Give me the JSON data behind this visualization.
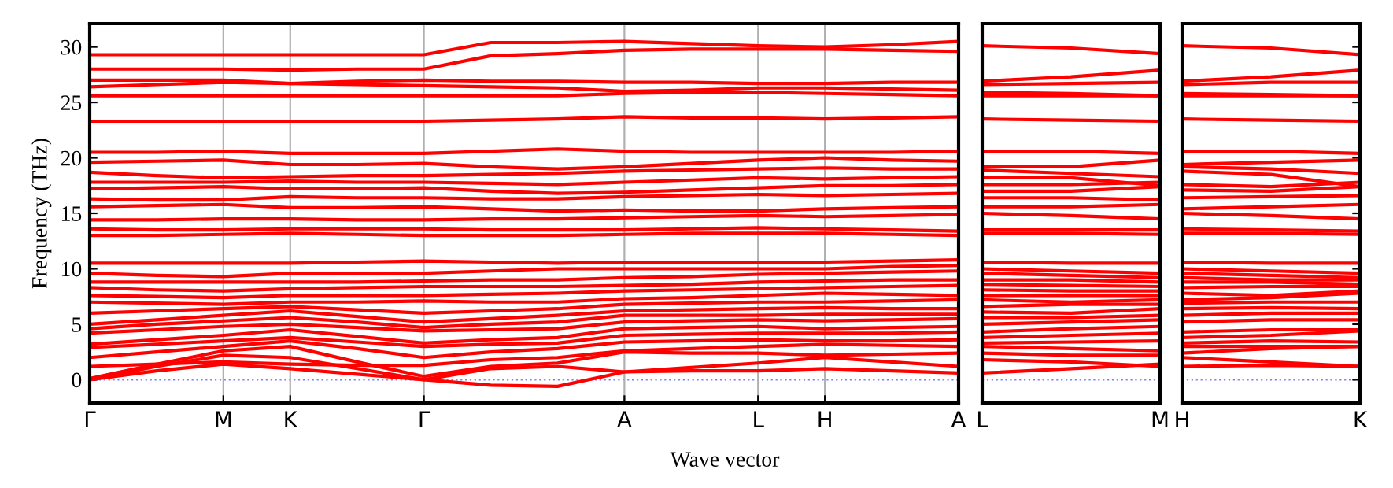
{
  "chart_data": [
    {
      "type": "line",
      "xlabel": "Wave vector",
      "ylabel": "Frequency (THz)",
      "categories": [
        "Γ",
        null,
        "M",
        "K",
        null,
        "Γ",
        null,
        null,
        "A",
        null,
        "L",
        "H",
        null,
        "A"
      ],
      "ylim": [
        -2.1,
        32.1
      ],
      "yticks": [
        0,
        5,
        10,
        15,
        20,
        25,
        30
      ],
      "grid": "x",
      "ref_lines": [
        {
          "axis": "y",
          "value": 0,
          "color": "#8080ff",
          "line_style": "dotted"
        }
      ],
      "series": [
        {
          "color": "#ff0000",
          "values": [
            0,
            0.8,
            1.4,
            1.0,
            0.5,
            0,
            -0.5,
            -0.6,
            0.7,
            0.8,
            0.8,
            1.0,
            0.8,
            0.6
          ]
        },
        {
          "color": "#ff0000",
          "values": [
            0,
            1.2,
            2.2,
            2.0,
            1.0,
            0,
            1.0,
            1.2,
            0.7,
            1.1,
            1.5,
            2.0,
            1.6,
            1.2
          ]
        },
        {
          "color": "#ff0000",
          "values": [
            0.1,
            1.4,
            2.6,
            3.0,
            1.6,
            0.3,
            1.2,
            1.5,
            2.5,
            2.4,
            2.4,
            2.2,
            2.3,
            2.4
          ]
        },
        {
          "color": "#ff0000",
          "values": [
            1.2,
            1.4,
            1.6,
            1.4,
            1.3,
            1.3,
            1.8,
            2.0,
            2.6,
            2.8,
            3.0,
            3.2,
            3.1,
            3.0
          ]
        },
        {
          "color": "#ff0000",
          "values": [
            2.0,
            2.5,
            3.0,
            3.5,
            2.8,
            2.0,
            2.5,
            2.8,
            3.4,
            3.5,
            3.6,
            3.5,
            3.5,
            3.6
          ]
        },
        {
          "color": "#ff0000",
          "values": [
            2.9,
            3.2,
            3.5,
            3.8,
            3.4,
            3.0,
            3.2,
            3.3,
            4.0,
            4.1,
            4.2,
            4.2,
            4.2,
            4.3
          ]
        },
        {
          "color": "#ff0000",
          "values": [
            3.2,
            3.6,
            4.0,
            4.5,
            3.9,
            3.3,
            3.6,
            3.8,
            4.6,
            4.7,
            4.8,
            4.6,
            4.7,
            4.8
          ]
        },
        {
          "color": "#ff0000",
          "values": [
            4.2,
            4.5,
            4.8,
            5.0,
            4.7,
            4.4,
            4.5,
            4.6,
            5.2,
            5.3,
            5.4,
            5.3,
            5.4,
            5.5
          ]
        },
        {
          "color": "#ff0000",
          "values": [
            4.6,
            5.0,
            5.3,
            5.6,
            5.2,
            4.7,
            5.0,
            5.2,
            5.8,
            5.8,
            5.8,
            5.9,
            5.9,
            5.9
          ]
        },
        {
          "color": "#ff0000",
          "values": [
            5.0,
            5.4,
            5.8,
            6.2,
            5.7,
            5.2,
            5.5,
            5.8,
            6.2,
            6.3,
            6.4,
            6.5,
            6.4,
            6.4
          ]
        },
        {
          "color": "#ff0000",
          "values": [
            6.0,
            6.2,
            6.4,
            6.6,
            6.3,
            6.0,
            6.2,
            6.4,
            6.8,
            6.9,
            7.0,
            7.0,
            7.1,
            7.2
          ]
        },
        {
          "color": "#ff0000",
          "values": [
            7.0,
            6.9,
            6.8,
            7.0,
            7.0,
            7.1,
            7.0,
            7.0,
            7.3,
            7.4,
            7.6,
            7.8,
            7.7,
            7.6
          ]
        },
        {
          "color": "#ff0000",
          "values": [
            7.6,
            7.5,
            7.4,
            7.6,
            7.6,
            7.6,
            7.7,
            7.8,
            8.0,
            8.1,
            8.2,
            8.3,
            8.4,
            8.5
          ]
        },
        {
          "color": "#ff0000",
          "values": [
            8.3,
            8.1,
            8.0,
            8.2,
            8.3,
            8.4,
            8.4,
            8.4,
            8.5,
            8.6,
            8.8,
            8.9,
            9.0,
            9.0
          ]
        },
        {
          "color": "#ff0000",
          "values": [
            8.8,
            8.8,
            8.8,
            8.8,
            8.8,
            8.9,
            9.0,
            9.0,
            9.2,
            9.3,
            9.5,
            9.6,
            9.7,
            9.8
          ]
        },
        {
          "color": "#ff0000",
          "values": [
            9.6,
            9.4,
            9.3,
            9.6,
            9.6,
            9.6,
            9.8,
            10.0,
            10.0,
            10.0,
            10.0,
            10.0,
            10.2,
            10.3
          ]
        },
        {
          "color": "#ff0000",
          "values": [
            10.5,
            10.5,
            10.5,
            10.5,
            10.6,
            10.7,
            10.6,
            10.5,
            10.6,
            10.6,
            10.6,
            10.6,
            10.7,
            10.8
          ]
        },
        {
          "color": "#ff0000",
          "values": [
            13.0,
            13.0,
            13.1,
            13.2,
            13.1,
            13.0,
            13.0,
            13.0,
            13.1,
            13.2,
            13.2,
            13.2,
            13.1,
            13.0
          ]
        },
        {
          "color": "#ff0000",
          "values": [
            13.6,
            13.5,
            13.5,
            13.6,
            13.6,
            13.6,
            13.5,
            13.5,
            13.5,
            13.6,
            13.7,
            13.6,
            13.5,
            13.4
          ]
        },
        {
          "color": "#ff0000",
          "values": [
            14.4,
            14.4,
            14.5,
            14.5,
            14.4,
            14.4,
            14.5,
            14.5,
            14.6,
            14.7,
            14.8,
            14.7,
            14.8,
            14.9
          ]
        },
        {
          "color": "#ff0000",
          "values": [
            15.6,
            15.7,
            15.8,
            15.5,
            15.5,
            15.6,
            15.4,
            15.2,
            15.3,
            15.2,
            15.2,
            15.4,
            15.5,
            15.6
          ]
        },
        {
          "color": "#ff0000",
          "values": [
            16.3,
            16.2,
            16.2,
            16.5,
            16.4,
            16.4,
            16.3,
            16.3,
            16.5,
            16.6,
            16.7,
            16.6,
            16.7,
            16.8
          ]
        },
        {
          "color": "#ff0000",
          "values": [
            17.2,
            17.3,
            17.4,
            17.2,
            17.2,
            17.3,
            17.0,
            16.8,
            16.9,
            17.1,
            17.3,
            17.5,
            17.5,
            17.6
          ]
        },
        {
          "color": "#ff0000",
          "values": [
            17.8,
            17.8,
            17.8,
            17.9,
            17.8,
            17.8,
            17.7,
            17.6,
            17.8,
            18.0,
            18.2,
            18.1,
            18.2,
            18.3
          ]
        },
        {
          "color": "#ff0000",
          "values": [
            18.7,
            18.4,
            18.2,
            18.3,
            18.4,
            18.4,
            18.5,
            18.6,
            18.8,
            18.9,
            19.0,
            19.1,
            19.0,
            19.0
          ]
        },
        {
          "color": "#ff0000",
          "values": [
            19.6,
            19.7,
            19.8,
            19.4,
            19.4,
            19.5,
            19.2,
            19.0,
            19.2,
            19.5,
            19.8,
            20.0,
            19.8,
            19.7
          ]
        },
        {
          "color": "#ff0000",
          "values": [
            20.5,
            20.5,
            20.6,
            20.4,
            20.4,
            20.4,
            20.6,
            20.8,
            20.6,
            20.5,
            20.5,
            20.5,
            20.5,
            20.6
          ]
        },
        {
          "color": "#ff0000",
          "values": [
            23.3,
            23.3,
            23.3,
            23.3,
            23.3,
            23.3,
            23.4,
            23.5,
            23.7,
            23.6,
            23.6,
            23.5,
            23.6,
            23.7
          ]
        },
        {
          "color": "#ff0000",
          "values": [
            25.6,
            25.6,
            25.6,
            25.6,
            25.6,
            25.6,
            25.6,
            25.6,
            25.8,
            25.9,
            25.9,
            25.8,
            25.7,
            25.6
          ]
        },
        {
          "color": "#ff0000",
          "values": [
            26.4,
            26.6,
            26.8,
            26.7,
            26.6,
            26.5,
            26.4,
            26.3,
            26.0,
            26.1,
            26.3,
            26.3,
            26.2,
            26.1
          ]
        },
        {
          "color": "#ff0000",
          "values": [
            27.0,
            27.0,
            27.0,
            26.7,
            26.9,
            27.0,
            26.9,
            26.9,
            26.8,
            26.8,
            26.7,
            26.7,
            26.8,
            26.8
          ]
        },
        {
          "color": "#ff0000",
          "values": [
            28.0,
            28.0,
            28.0,
            27.9,
            28.0,
            28.0,
            29.2,
            29.4,
            29.7,
            29.8,
            29.8,
            29.8,
            29.7,
            29.6
          ]
        },
        {
          "color": "#ff0000",
          "values": [
            29.3,
            29.3,
            29.3,
            29.3,
            29.3,
            29.3,
            30.4,
            30.4,
            30.5,
            30.3,
            30.1,
            30.0,
            30.2,
            30.5
          ]
        }
      ]
    },
    {
      "type": "line",
      "categories": [
        "L",
        null,
        "M"
      ],
      "ylim": [
        -2.1,
        32.1
      ],
      "yticks": [
        0,
        5,
        10,
        15,
        20,
        25,
        30
      ],
      "tick_labels": "x",
      "grid": false,
      "ref_lines": [
        {
          "axis": "y",
          "value": 0,
          "color": "#8080ff",
          "line_style": "dotted"
        }
      ],
      "series": [
        {
          "color": "#ff0000",
          "values": [
            0.6,
            1.0,
            1.4
          ]
        },
        {
          "color": "#ff0000",
          "values": [
            1.8,
            1.6,
            1.2
          ]
        },
        {
          "color": "#ff0000",
          "values": [
            2.4,
            2.2,
            2.2
          ]
        },
        {
          "color": "#ff0000",
          "values": [
            3.0,
            2.8,
            2.6
          ]
        },
        {
          "color": "#ff0000",
          "values": [
            3.3,
            3.4,
            3.5
          ]
        },
        {
          "color": "#ff0000",
          "values": [
            3.8,
            4.0,
            4.2
          ]
        },
        {
          "color": "#ff0000",
          "values": [
            4.3,
            4.6,
            4.8
          ]
        },
        {
          "color": "#ff0000",
          "values": [
            5.0,
            5.2,
            5.4
          ]
        },
        {
          "color": "#ff0000",
          "values": [
            5.6,
            5.6,
            5.8
          ]
        },
        {
          "color": "#ff0000",
          "values": [
            6.1,
            6.0,
            6.4
          ]
        },
        {
          "color": "#ff0000",
          "values": [
            6.6,
            6.8,
            6.8
          ]
        },
        {
          "color": "#ff0000",
          "values": [
            7.2,
            7.0,
            7.2
          ]
        },
        {
          "color": "#ff0000",
          "values": [
            7.6,
            7.6,
            7.6
          ]
        },
        {
          "color": "#ff0000",
          "values": [
            8.1,
            8.0,
            8.0
          ]
        },
        {
          "color": "#ff0000",
          "values": [
            8.6,
            8.5,
            8.4
          ]
        },
        {
          "color": "#ff0000",
          "values": [
            9.0,
            9.0,
            8.8
          ]
        },
        {
          "color": "#ff0000",
          "values": [
            9.6,
            9.4,
            9.2
          ]
        },
        {
          "color": "#ff0000",
          "values": [
            10.0,
            9.8,
            9.6
          ]
        },
        {
          "color": "#ff0000",
          "values": [
            10.6,
            10.5,
            10.5
          ]
        },
        {
          "color": "#ff0000",
          "values": [
            13.2,
            13.2,
            13.1
          ]
        },
        {
          "color": "#ff0000",
          "values": [
            13.5,
            13.5,
            13.5
          ]
        },
        {
          "color": "#ff0000",
          "values": [
            15.0,
            14.8,
            14.5
          ]
        },
        {
          "color": "#ff0000",
          "values": [
            15.6,
            15.6,
            15.8
          ]
        },
        {
          "color": "#ff0000",
          "values": [
            16.4,
            16.4,
            16.2
          ]
        },
        {
          "color": "#ff0000",
          "values": [
            17.0,
            17.0,
            17.4
          ]
        },
        {
          "color": "#ff0000",
          "values": [
            17.6,
            17.6,
            17.8
          ]
        },
        {
          "color": "#ff0000",
          "values": [
            18.2,
            18.2,
            17.5
          ]
        },
        {
          "color": "#ff0000",
          "values": [
            18.9,
            18.6,
            18.3
          ]
        },
        {
          "color": "#ff0000",
          "values": [
            19.2,
            19.2,
            19.8
          ]
        },
        {
          "color": "#ff0000",
          "values": [
            20.6,
            20.6,
            20.4
          ]
        },
        {
          "color": "#ff0000",
          "values": [
            23.5,
            23.4,
            23.3
          ]
        },
        {
          "color": "#ff0000",
          "values": [
            25.6,
            25.6,
            25.6
          ]
        },
        {
          "color": "#ff0000",
          "values": [
            25.9,
            25.8,
            25.6
          ]
        },
        {
          "color": "#ff0000",
          "values": [
            26.6,
            26.7,
            26.8
          ]
        },
        {
          "color": "#ff0000",
          "values": [
            26.9,
            27.3,
            27.9
          ]
        },
        {
          "color": "#ff0000",
          "values": [
            30.1,
            29.9,
            29.4
          ]
        }
      ]
    },
    {
      "type": "line",
      "categories": [
        "H",
        null,
        "K"
      ],
      "ylim": [
        -2.1,
        32.1
      ],
      "yticks": [
        0,
        5,
        10,
        15,
        20,
        25,
        30
      ],
      "tick_labels": "x",
      "grid": false,
      "ref_lines": [
        {
          "axis": "y",
          "value": 0,
          "color": "#8080ff",
          "line_style": "dotted"
        }
      ],
      "series": [
        {
          "color": "#ff0000",
          "values": [
            1.2,
            1.3,
            1.2
          ]
        },
        {
          "color": "#ff0000",
          "values": [
            2.0,
            1.6,
            1.2
          ]
        },
        {
          "color": "#ff0000",
          "values": [
            2.4,
            2.8,
            3.0
          ]
        },
        {
          "color": "#ff0000",
          "values": [
            3.0,
            3.0,
            3.0
          ]
        },
        {
          "color": "#ff0000",
          "values": [
            3.3,
            3.5,
            3.4
          ]
        },
        {
          "color": "#ff0000",
          "values": [
            3.8,
            4.0,
            4.4
          ]
        },
        {
          "color": "#ff0000",
          "values": [
            4.3,
            4.5,
            4.5
          ]
        },
        {
          "color": "#ff0000",
          "values": [
            5.2,
            5.4,
            5.4
          ]
        },
        {
          "color": "#ff0000",
          "values": [
            5.8,
            6.0,
            6.0
          ]
        },
        {
          "color": "#ff0000",
          "values": [
            6.4,
            6.5,
            6.4
          ]
        },
        {
          "color": "#ff0000",
          "values": [
            6.9,
            7.0,
            7.0
          ]
        },
        {
          "color": "#ff0000",
          "values": [
            7.2,
            7.4,
            7.8
          ]
        },
        {
          "color": "#ff0000",
          "values": [
            7.8,
            7.6,
            8.0
          ]
        },
        {
          "color": "#ff0000",
          "values": [
            8.3,
            8.4,
            8.4
          ]
        },
        {
          "color": "#ff0000",
          "values": [
            8.8,
            8.8,
            8.6
          ]
        },
        {
          "color": "#ff0000",
          "values": [
            9.2,
            9.0,
            9.0
          ]
        },
        {
          "color": "#ff0000",
          "values": [
            9.6,
            9.4,
            9.2
          ]
        },
        {
          "color": "#ff0000",
          "values": [
            10.0,
            9.8,
            9.6
          ]
        },
        {
          "color": "#ff0000",
          "values": [
            10.6,
            10.5,
            10.5
          ]
        },
        {
          "color": "#ff0000",
          "values": [
            13.2,
            13.2,
            13.1
          ]
        },
        {
          "color": "#ff0000",
          "values": [
            13.6,
            13.5,
            13.4
          ]
        },
        {
          "color": "#ff0000",
          "values": [
            15.0,
            14.8,
            14.5
          ]
        },
        {
          "color": "#ff0000",
          "values": [
            15.4,
            15.6,
            15.8
          ]
        },
        {
          "color": "#ff0000",
          "values": [
            16.4,
            16.5,
            16.6
          ]
        },
        {
          "color": "#ff0000",
          "values": [
            17.1,
            17.0,
            17.4
          ]
        },
        {
          "color": "#ff0000",
          "values": [
            17.6,
            17.4,
            17.8
          ]
        },
        {
          "color": "#ff0000",
          "values": [
            18.8,
            18.5,
            17.4
          ]
        },
        {
          "color": "#ff0000",
          "values": [
            19.2,
            19.0,
            18.6
          ]
        },
        {
          "color": "#ff0000",
          "values": [
            19.4,
            19.6,
            19.8
          ]
        },
        {
          "color": "#ff0000",
          "values": [
            20.6,
            20.6,
            20.4
          ]
        },
        {
          "color": "#ff0000",
          "values": [
            23.5,
            23.4,
            23.3
          ]
        },
        {
          "color": "#ff0000",
          "values": [
            25.6,
            25.6,
            25.6
          ]
        },
        {
          "color": "#ff0000",
          "values": [
            25.8,
            25.7,
            25.6
          ]
        },
        {
          "color": "#ff0000",
          "values": [
            26.6,
            26.8,
            26.8
          ]
        },
        {
          "color": "#ff0000",
          "values": [
            26.9,
            27.3,
            27.9
          ]
        },
        {
          "color": "#ff0000",
          "values": [
            30.1,
            29.9,
            29.3
          ]
        }
      ]
    }
  ]
}
